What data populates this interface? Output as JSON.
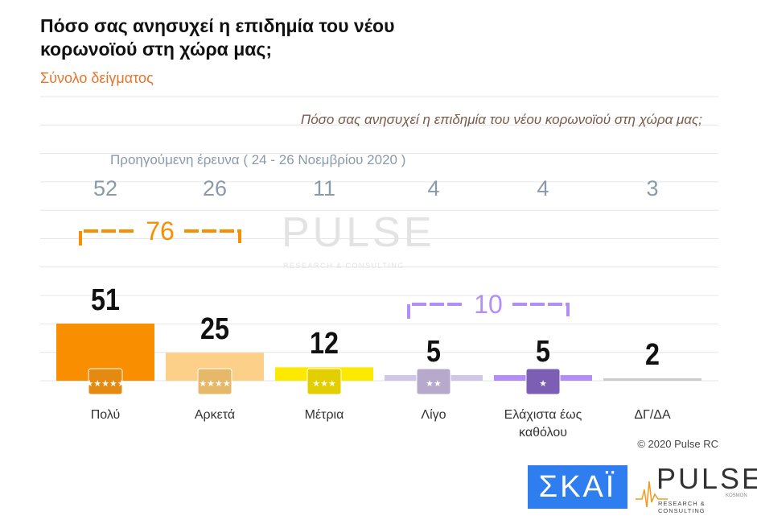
{
  "title": "Πόσο σας ανησυχεί η επιδημία του νέου κορωνοϊού στη χώρα μας;",
  "subtitle": "Σύνολο δείγματος",
  "copyright": "© 2020 Pulse RC",
  "logos": {
    "skai": "ΣΚΑΪ",
    "pulse": "PULSE",
    "pulse_sub": "RESEARCH & CONSULTING",
    "pulse_small": "KOSMON"
  },
  "watermark": {
    "text": "PULSE",
    "sub": "RESEARCH & CONSULTING"
  },
  "chart_data": {
    "type": "bar",
    "question": "Πόσο σας ανησυχεί η επιδημία του νέου κορωνοϊού στη χώρα μας;",
    "categories": [
      "Πολύ",
      "Αρκετά",
      "Μέτρια",
      "Λίγο",
      "Ελάχιστα έως καθόλου",
      "ΔΓ/ΔΑ"
    ],
    "values": [
      51,
      25,
      12,
      5,
      5,
      2
    ],
    "previous_label": "Προηγούμενη έρευνα  ( 24 - 26  Νοεμβρίου  2020 )",
    "previous_values": [
      52,
      26,
      11,
      4,
      4,
      3
    ],
    "colors": [
      "#f98e00",
      "#fdd08a",
      "#fde800",
      "#d2c6e6",
      "#b38ef5",
      "#cccccc"
    ],
    "icon_colors": [
      "#e58a10",
      "#e6b86a",
      "#e3cf00",
      "#b7a9cc",
      "#7c5fb4",
      ""
    ],
    "groups": [
      {
        "label": "76",
        "from": 0,
        "to": 1,
        "color": "#f98e00"
      },
      {
        "label": "10",
        "from": 3,
        "to": 4,
        "color": "#b38ef5"
      }
    ],
    "ylim": [
      0,
      55
    ],
    "grid": true
  }
}
